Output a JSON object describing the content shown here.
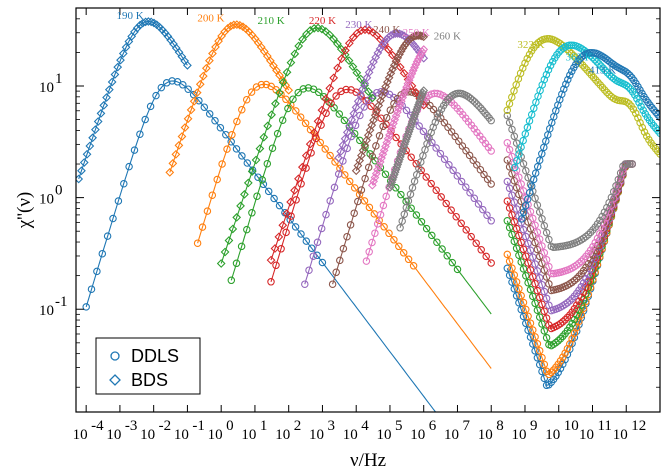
{
  "chart_data": {
    "type": "scatter",
    "xlabel": "ν/Hz",
    "ylabel": "χ''(ν)",
    "x_scale": "log",
    "y_scale": "log",
    "xlim": [
      5e-05,
      10000000000000.0
    ],
    "ylim": [
      0.012,
      50
    ],
    "x_ticks": [
      {
        "value": 0.0001,
        "label": "10",
        "sup": "-4"
      },
      {
        "value": 0.001,
        "label": "10",
        "sup": "-3"
      },
      {
        "value": 0.01,
        "label": "10",
        "sup": "-2"
      },
      {
        "value": 0.1,
        "label": "10",
        "sup": "-1"
      },
      {
        "value": 1.0,
        "label": "10",
        "sup": "0"
      },
      {
        "value": 10.0,
        "label": "10",
        "sup": "1"
      },
      {
        "value": 100.0,
        "label": "10",
        "sup": "2"
      },
      {
        "value": 1000.0,
        "label": "10",
        "sup": "3"
      },
      {
        "value": 10000.0,
        "label": "10",
        "sup": "4"
      },
      {
        "value": 100000.0,
        "label": "10",
        "sup": "5"
      },
      {
        "value": 1000000.0,
        "label": "10",
        "sup": "6"
      },
      {
        "value": 10000000.0,
        "label": "10",
        "sup": "7"
      },
      {
        "value": 100000000.0,
        "label": "10",
        "sup": "8"
      },
      {
        "value": 1000000000.0,
        "label": "10",
        "sup": "9"
      },
      {
        "value": 10000000000.0,
        "label": "10",
        "sup": "10"
      },
      {
        "value": 100000000000.0,
        "label": "10",
        "sup": "11"
      },
      {
        "value": 1000000000000.0,
        "label": "10",
        "sup": "12"
      }
    ],
    "y_ticks": [
      {
        "value": 0.1,
        "label": "10",
        "sup": "-1"
      },
      {
        "value": 1,
        "label": "10",
        "sup": "0"
      },
      {
        "value": 10,
        "label": "10",
        "sup": "1"
      }
    ],
    "legend": {
      "position": "bottom-left",
      "entries": [
        {
          "label": "DDLS",
          "marker": "circle"
        },
        {
          "label": "BDS",
          "marker": "diamond"
        }
      ]
    },
    "bds_series": [
      {
        "label": "190 K",
        "color": "#1f77b4",
        "x_start": 6e-05,
        "x_end": 0.1,
        "peak_x": 0.003,
        "peak_y": 32,
        "a": 0.9,
        "b": 0.5
      },
      {
        "label": "200 K",
        "color": "#ff7f0e",
        "x_start": 0.03,
        "x_end": 100,
        "peak_x": 1.2,
        "peak_y": 30,
        "a": 0.9,
        "b": 0.5
      },
      {
        "label": "210 K",
        "color": "#2ca02c",
        "x_start": 1,
        "x_end": 30000.0,
        "peak_x": 300,
        "peak_y": 28,
        "a": 0.9,
        "b": 0.5
      },
      {
        "label": "220 K",
        "color": "#d62728",
        "x_start": 30,
        "x_end": 1000000.0,
        "peak_x": 8000.0,
        "peak_y": 27,
        "a": 0.9,
        "b": 0.5
      },
      {
        "label": "230 K",
        "color": "#9467bd",
        "x_start": 3000.0,
        "x_end": 1000000.0,
        "peak_x": 70000.0,
        "peak_y": 25,
        "a": 0.9,
        "b": 0.5
      },
      {
        "label": "240 K",
        "color": "#8c564b",
        "x_start": 10000.0,
        "x_end": 1000000.0,
        "peak_x": 300000.0,
        "peak_y": 24,
        "a": 0.9,
        "b": 0.5
      },
      {
        "label": "250 K",
        "color": "#e377c2",
        "x_start": 30000.0,
        "x_end": 1000000.0,
        "peak_x": 1200000.0,
        "peak_y": 23,
        "a": 0.9,
        "b": 0.5
      },
      {
        "label": "260 K",
        "color": "#7f7f7f",
        "x_start": 100000.0,
        "x_end": 1000000.0,
        "peak_x": 4000000.0,
        "peak_y": 22,
        "a": 0.9,
        "b": 0.5
      }
    ],
    "ddls_series": [
      {
        "color": "#1f77b4",
        "x_start": 0.0001,
        "x_end": 100000000.0,
        "peak_x": 0.01,
        "peak_y": 7.5,
        "a": 1.0,
        "b": 0.4
      },
      {
        "color": "#ff7f0e",
        "x_start": 0.2,
        "x_end": 100000000.0,
        "peak_x": 5,
        "peak_y": 7.0,
        "a": 1.0,
        "b": 0.4
      },
      {
        "color": "#2ca02c",
        "x_start": 2,
        "x_end": 100000000.0,
        "peak_x": 100.0,
        "peak_y": 6.5,
        "a": 1.0,
        "b": 0.4
      },
      {
        "color": "#d62728",
        "x_start": 30,
        "x_end": 100000000.0,
        "peak_x": 1500.0,
        "peak_y": 6.3,
        "a": 1.0,
        "b": 0.4
      },
      {
        "color": "#9467bd",
        "x_start": 300.0,
        "x_end": 100000000.0,
        "peak_x": 15000.0,
        "peak_y": 6.0,
        "a": 1.0,
        "b": 0.4
      },
      {
        "color": "#8c564b",
        "x_start": 2000.0,
        "x_end": 100000000.0,
        "peak_x": 100000.0,
        "peak_y": 6.0,
        "a": 1.0,
        "b": 0.4
      },
      {
        "color": "#e377c2",
        "x_start": 20000.0,
        "x_end": 100000000.0,
        "peak_x": 600000.0,
        "peak_y": 5.8,
        "a": 1.0,
        "b": 0.4
      },
      {
        "color": "#7f7f7f",
        "x_start": 200000.0,
        "x_end": 100000000.0,
        "peak_x": 3000000.0,
        "peak_y": 5.8,
        "a": 1.0,
        "b": 0.4
      }
    ],
    "hf_series": [
      {
        "color": "#1f77b4",
        "x_start": 300000000.0,
        "x_end": 1500000000000.0,
        "min_y": 0.015,
        "peak_x": 1000000000000.0,
        "peak_y": 2.0
      },
      {
        "color": "#ff7f0e",
        "x_start": 300000000.0,
        "x_end": 1500000000000.0,
        "min_y": 0.02,
        "peak_x": 1000000000000.0,
        "peak_y": 2.0
      },
      {
        "color": "#2ca02c",
        "x_start": 300000000.0,
        "x_end": 1500000000000.0,
        "min_y": 0.04,
        "peak_x": 1000000000000.0,
        "peak_y": 2.0
      },
      {
        "color": "#d62728",
        "x_start": 300000000.0,
        "x_end": 1500000000000.0,
        "min_y": 0.06,
        "peak_x": 1000000000000.0,
        "peak_y": 2.0
      },
      {
        "color": "#9467bd",
        "x_start": 300000000.0,
        "x_end": 1500000000000.0,
        "min_y": 0.09,
        "peak_x": 1000000000000.0,
        "peak_y": 2.0
      },
      {
        "color": "#8c564b",
        "x_start": 300000000.0,
        "x_end": 1500000000000.0,
        "min_y": 0.14,
        "peak_x": 1000000000000.0,
        "peak_y": 2.0
      },
      {
        "color": "#e377c2",
        "x_start": 300000000.0,
        "x_end": 1500000000000.0,
        "min_y": 0.2,
        "peak_x": 1000000000000.0,
        "peak_y": 2.0
      },
      {
        "color": "#7f7f7f",
        "x_start": 300000000.0,
        "x_end": 1500000000000.0,
        "min_y": 0.35,
        "peak_x": 1000000000000.0,
        "peak_y": 2.0
      }
    ],
    "high_temp_series": [
      {
        "label": "323 K",
        "color": "#bcbd22",
        "x_start": 300000000.0,
        "x_end": 10000000000000.0,
        "peak_x": 1000000000.0,
        "peak_y": 16
      },
      {
        "label": "362 K",
        "color": "#17becf",
        "x_start": 500000000.0,
        "x_end": 10000000000000.0,
        "peak_x": 5000000000.0,
        "peak_y": 14
      },
      {
        "label": "413 K",
        "color": "#1f77b4",
        "x_start": 800000000.0,
        "x_end": 10000000000000.0,
        "peak_x": 20000000000.0,
        "peak_y": 12
      }
    ],
    "temperature_labels": [
      {
        "text": "190 K",
        "color": "#1f77b4",
        "x": 0.002,
        "y": 40
      },
      {
        "text": "200 K",
        "color": "#ff7f0e",
        "x": 0.5,
        "y": 38
      },
      {
        "text": "210 K",
        "color": "#2ca02c",
        "x": 30,
        "y": 36
      },
      {
        "text": "220 K",
        "color": "#d62728",
        "x": 1000.0,
        "y": 36
      },
      {
        "text": "230 K",
        "color": "#9467bd",
        "x": 12000.0,
        "y": 33
      },
      {
        "text": "240 K",
        "color": "#8c564b",
        "x": 80000.0,
        "y": 30
      },
      {
        "text": "250 K",
        "color": "#e377c2",
        "x": 600000.0,
        "y": 28
      },
      {
        "text": "260 K",
        "color": "#7f7f7f",
        "x": 5000000.0,
        "y": 26
      },
      {
        "text": "323 K",
        "color": "#bcbd22",
        "x": 1500000000.0,
        "y": 22
      },
      {
        "text": "362 K",
        "color": "#17becf",
        "x": 40000000000.0,
        "y": 17
      },
      {
        "text": "413 K",
        "color": "#1f77b4",
        "x": 200000000000.0,
        "y": 13
      }
    ]
  }
}
